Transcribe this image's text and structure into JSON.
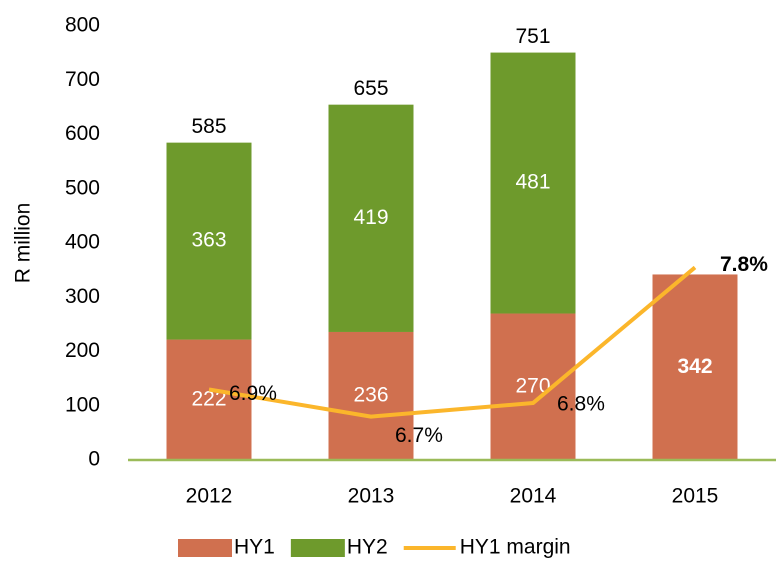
{
  "chart_data": {
    "type": "stacked-bar-line",
    "y_axis_label": "R million",
    "categories": [
      "2012",
      "2013",
      "2014",
      "2015"
    ],
    "series": [
      {
        "name": "HY1",
        "color": "#d0704f",
        "values": [
          222,
          236,
          270,
          342
        ]
      },
      {
        "name": "HY2",
        "color": "#6e9a2c",
        "values": [
          363,
          419,
          481,
          null
        ]
      },
      {
        "name": "HY1 margin",
        "color": "#fbb62b",
        "axis": "y2",
        "values": [
          6.9,
          6.7,
          6.8,
          7.8
        ],
        "value_labels": [
          "6.9%",
          "6.7%",
          "6.8%",
          "7.8%"
        ]
      }
    ],
    "totals": [
      585,
      655,
      751,
      null
    ],
    "ylim": [
      0,
      800
    ],
    "yticks": [
      0,
      100,
      200,
      300,
      400,
      500,
      600,
      700,
      800
    ],
    "y2lim": [
      6.38,
      9.58
    ],
    "grid": false,
    "legend": "bottom"
  }
}
